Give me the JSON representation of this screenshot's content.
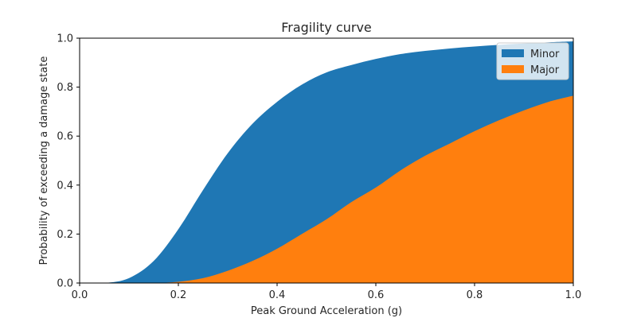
{
  "chart_data": {
    "type": "area",
    "title": "Fragility curve",
    "xlabel": "Peak Ground Acceleration (g)",
    "ylabel": "Probability of exceeding a damage state",
    "xlim": [
      0.0,
      1.0
    ],
    "ylim": [
      0.0,
      1.0
    ],
    "x_ticks": [
      "0.0",
      "0.2",
      "0.4",
      "0.6",
      "0.8",
      "1.0"
    ],
    "y_ticks": [
      "0.0",
      "0.2",
      "0.4",
      "0.6",
      "0.8",
      "1.0"
    ],
    "grid": false,
    "legend_position": "top-right",
    "x": [
      0.0,
      0.05,
      0.1,
      0.15,
      0.2,
      0.25,
      0.3,
      0.35,
      0.4,
      0.45,
      0.5,
      0.55,
      0.6,
      0.65,
      0.7,
      0.75,
      0.8,
      0.85,
      0.9,
      0.95,
      1.0
    ],
    "series": [
      {
        "name": "Minor",
        "color": "#1f77b4",
        "values": [
          0.0,
          0.0,
          0.02,
          0.09,
          0.22,
          0.38,
          0.53,
          0.65,
          0.74,
          0.81,
          0.86,
          0.89,
          0.915,
          0.935,
          0.948,
          0.958,
          0.966,
          0.973,
          0.978,
          0.983,
          0.987
        ]
      },
      {
        "name": "Major",
        "color": "#ff7f0e",
        "values": [
          0.0,
          0.0,
          0.0,
          0.0,
          0.005,
          0.02,
          0.05,
          0.09,
          0.14,
          0.2,
          0.26,
          0.33,
          0.39,
          0.46,
          0.52,
          0.57,
          0.62,
          0.665,
          0.705,
          0.74,
          0.765
        ]
      }
    ]
  }
}
